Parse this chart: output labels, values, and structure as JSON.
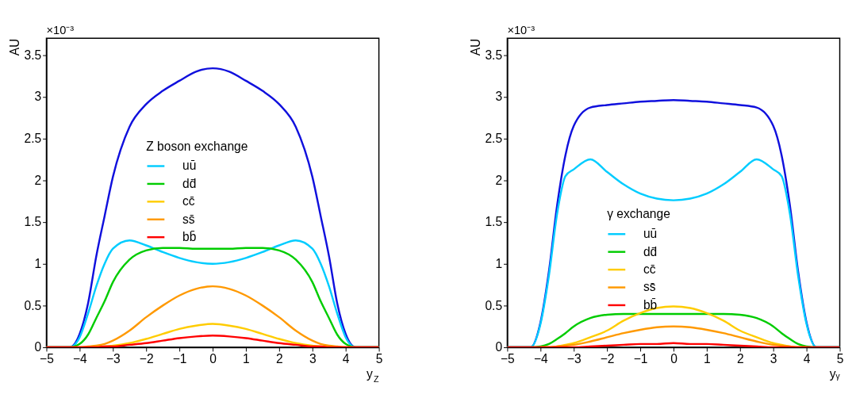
{
  "chart_data": [
    {
      "type": "line",
      "xlabel": "y$_{Z}$",
      "ylabel": "AU",
      "xlim": [
        -5,
        5
      ],
      "ylim": [
        0,
        3.7
      ],
      "xticks": [
        -5,
        -4,
        -3,
        -2,
        -1,
        0,
        1,
        2,
        3,
        4,
        5
      ],
      "yticks": [
        0,
        0.5,
        1,
        1.5,
        2,
        2.5,
        3,
        3.5
      ],
      "grid": false,
      "legend": "center",
      "legend_title": "Z boson exchange",
      "annotations": [
        "×10⁻³"
      ],
      "x": [
        -5,
        -4.3,
        -4,
        -3.75,
        -3.5,
        -3.25,
        -3,
        -2.5,
        -2,
        -1.5,
        -1,
        -0.5,
        0,
        0.5,
        1,
        1.5,
        2,
        2.5,
        3,
        3.25,
        3.5,
        3.75,
        4,
        4.3,
        5
      ],
      "series": [
        {
          "color": "#1010dd",
          "values": [
            0,
            0,
            0.16,
            0.52,
            1.09,
            1.57,
            2.04,
            2.64,
            2.91,
            3.07,
            3.19,
            3.3,
            3.34,
            3.3,
            3.19,
            3.07,
            2.91,
            2.64,
            2.04,
            1.57,
            1.09,
            0.52,
            0.16,
            0,
            0
          ]
        },
        {
          "name": "uū",
          "color": "#00ccff",
          "values": [
            0,
            0,
            0.12,
            0.4,
            0.73,
            1.0,
            1.18,
            1.28,
            1.22,
            1.14,
            1.07,
            1.02,
            1.0,
            1.02,
            1.07,
            1.14,
            1.22,
            1.28,
            1.18,
            1.0,
            0.73,
            0.4,
            0.12,
            0,
            0
          ]
        },
        {
          "name": "dd̄",
          "color": "#00cc00",
          "values": [
            0,
            0,
            0.04,
            0.15,
            0.35,
            0.55,
            0.78,
            1.05,
            1.16,
            1.19,
            1.19,
            1.18,
            1.18,
            1.18,
            1.19,
            1.19,
            1.16,
            1.05,
            0.78,
            0.55,
            0.35,
            0.15,
            0.04,
            0,
            0
          ]
        },
        {
          "name": "cc̄",
          "color": "#ffcc00",
          "values": [
            null,
            null,
            0,
            0,
            0.01,
            0.01,
            0.02,
            0.05,
            0.1,
            0.16,
            0.22,
            0.26,
            0.28,
            0.26,
            0.22,
            0.16,
            0.1,
            0.05,
            0.02,
            0.01,
            0.01,
            0,
            0,
            null,
            null
          ]
        },
        {
          "name": "ss̄",
          "color": "#ff9900",
          "values": [
            0,
            0,
            0,
            0.01,
            0.02,
            0.04,
            0.08,
            0.2,
            0.36,
            0.5,
            0.62,
            0.7,
            0.73,
            0.7,
            0.62,
            0.5,
            0.36,
            0.2,
            0.08,
            0.04,
            0.02,
            0.01,
            0,
            0,
            0
          ]
        },
        {
          "name": "bb̄",
          "color": "#ff0000",
          "values": [
            0,
            0,
            0,
            0,
            0,
            0.01,
            0.01,
            0.03,
            0.05,
            0.08,
            0.11,
            0.13,
            0.14,
            0.13,
            0.11,
            0.08,
            0.05,
            0.03,
            0.01,
            0.01,
            0,
            0,
            0,
            0,
            0
          ]
        }
      ]
    },
    {
      "type": "line",
      "xlabel": "yᵧ",
      "ylabel": "AU",
      "xlim": [
        -5,
        5
      ],
      "ylim": [
        0,
        3.7
      ],
      "xticks": [
        -5,
        -4,
        -3,
        -2,
        -1,
        0,
        1,
        2,
        3,
        4,
        5
      ],
      "yticks": [
        0,
        0.5,
        1,
        1.5,
        2,
        2.5,
        3,
        3.5
      ],
      "grid": false,
      "legend": "bottom",
      "legend_title": "γ exchange",
      "annotations": [
        "×10⁻³"
      ],
      "x": [
        -5,
        -4.3,
        -4,
        -3.75,
        -3.5,
        -3.25,
        -3,
        -2.5,
        -2,
        -1.5,
        -1,
        -0.5,
        0,
        0.5,
        1,
        1.5,
        2,
        2.5,
        3,
        3.25,
        3.5,
        3.75,
        4,
        4.3,
        5
      ],
      "series": [
        {
          "color": "#1010dd",
          "values": [
            0,
            0,
            0.3,
            0.9,
            1.7,
            2.3,
            2.65,
            2.87,
            2.9,
            2.92,
            2.94,
            2.95,
            2.96,
            2.95,
            2.94,
            2.92,
            2.9,
            2.87,
            2.65,
            2.3,
            1.7,
            0.9,
            0.3,
            0,
            0
          ]
        },
        {
          "name": "uū",
          "color": "#00ccff",
          "values": [
            0,
            0,
            0.28,
            0.85,
            1.6,
            2.05,
            2.13,
            2.25,
            2.1,
            1.95,
            1.84,
            1.78,
            1.76,
            1.78,
            1.84,
            1.95,
            2.1,
            2.25,
            2.13,
            2.05,
            1.6,
            0.85,
            0.28,
            0,
            0
          ]
        },
        {
          "name": "dd̄",
          "color": "#00cc00",
          "values": [
            0,
            0,
            0.01,
            0.04,
            0.1,
            0.17,
            0.25,
            0.35,
            0.39,
            0.4,
            0.4,
            0.4,
            0.4,
            0.4,
            0.4,
            0.4,
            0.39,
            0.35,
            0.25,
            0.17,
            0.1,
            0.04,
            0.01,
            0,
            0
          ]
        },
        {
          "name": "cc̄",
          "color": "#ffcc00",
          "values": [
            null,
            null,
            0,
            0,
            0.01,
            0.03,
            0.05,
            0.12,
            0.2,
            0.32,
            0.41,
            0.47,
            0.49,
            0.47,
            0.41,
            0.32,
            0.2,
            0.12,
            0.05,
            0.03,
            0.01,
            0,
            0,
            null,
            null
          ]
        },
        {
          "name": "ss̄",
          "color": "#ff9900",
          "values": [
            null,
            null,
            0,
            0,
            0.01,
            0.02,
            0.03,
            0.07,
            0.12,
            0.17,
            0.21,
            0.24,
            0.25,
            0.24,
            0.21,
            0.17,
            0.12,
            0.07,
            0.03,
            0.02,
            0.01,
            0,
            0,
            null,
            null
          ]
        },
        {
          "name": "bb̄",
          "color": "#ff0000",
          "values": [
            0,
            0,
            0,
            0,
            0,
            0,
            0,
            0.01,
            0.02,
            0.03,
            0.04,
            0.04,
            0.05,
            0.04,
            0.04,
            0.03,
            0.02,
            0.01,
            0,
            0,
            0,
            0,
            0,
            0,
            0
          ]
        }
      ]
    }
  ]
}
